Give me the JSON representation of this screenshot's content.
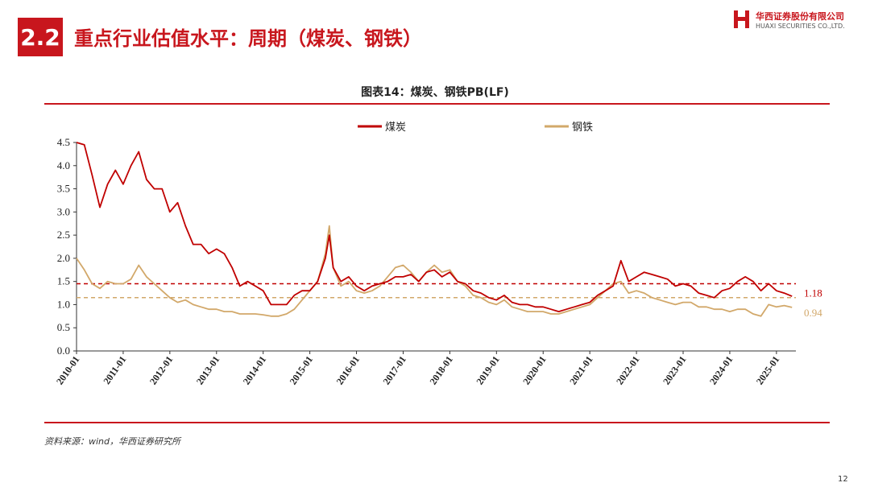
{
  "header": {
    "section_number": "2.2",
    "title": "重点行业估值水平：周期（煤炭、钢铁）",
    "logo_cn": "华西证券股份有限公司",
    "logo_en": "HUAXI SECURITIES CO.,LTD."
  },
  "footer": {
    "source": "资料来源：wind，华西证券研究所",
    "page_number": "12"
  },
  "colors": {
    "brand": "#c8161d",
    "coal": "#c00000",
    "steel": "#d2a86a"
  },
  "chart_data": {
    "type": "line",
    "title": "图表14：煤炭、钢铁PB(LF)",
    "legend_position": "top",
    "x_tick_labels": [
      "2010-01",
      "2011-01",
      "2012-01",
      "2013-01",
      "2014-01",
      "2015-01",
      "2016-01",
      "2017-01",
      "2018-01",
      "2019-01",
      "2020-01",
      "2021-01",
      "2022-01",
      "2023-01",
      "2024-01",
      "2025-01"
    ],
    "y_tick_labels": [
      "0.0",
      "0.5",
      "1.0",
      "1.5",
      "2.0",
      "2.5",
      "3.0",
      "3.5",
      "4.0",
      "4.5"
    ],
    "xlim": [
      "2010-01",
      "2025-06"
    ],
    "ylim": [
      0,
      4.5
    ],
    "grid": false,
    "series": [
      {
        "name": "煤炭",
        "color": "#c00000",
        "end_label": "1.18",
        "reference_line": 1.45,
        "points": [
          [
            "2010-01",
            4.5
          ],
          [
            "2010-03",
            4.45
          ],
          [
            "2010-05",
            3.8
          ],
          [
            "2010-07",
            3.1
          ],
          [
            "2010-09",
            3.6
          ],
          [
            "2010-11",
            3.9
          ],
          [
            "2011-01",
            3.6
          ],
          [
            "2011-03",
            4.0
          ],
          [
            "2011-05",
            4.3
          ],
          [
            "2011-07",
            3.7
          ],
          [
            "2011-09",
            3.5
          ],
          [
            "2011-11",
            3.5
          ],
          [
            "2012-01",
            3.0
          ],
          [
            "2012-03",
            3.2
          ],
          [
            "2012-05",
            2.7
          ],
          [
            "2012-07",
            2.3
          ],
          [
            "2012-09",
            2.3
          ],
          [
            "2012-11",
            2.1
          ],
          [
            "2013-01",
            2.2
          ],
          [
            "2013-03",
            2.1
          ],
          [
            "2013-05",
            1.8
          ],
          [
            "2013-07",
            1.4
          ],
          [
            "2013-09",
            1.5
          ],
          [
            "2013-11",
            1.4
          ],
          [
            "2014-01",
            1.3
          ],
          [
            "2014-03",
            1.0
          ],
          [
            "2014-05",
            1.0
          ],
          [
            "2014-07",
            1.0
          ],
          [
            "2014-09",
            1.2
          ],
          [
            "2014-11",
            1.3
          ],
          [
            "2015-01",
            1.3
          ],
          [
            "2015-03",
            1.5
          ],
          [
            "2015-05",
            2.0
          ],
          [
            "2015-06",
            2.5
          ],
          [
            "2015-07",
            1.8
          ],
          [
            "2015-09",
            1.5
          ],
          [
            "2015-11",
            1.6
          ],
          [
            "2016-01",
            1.4
          ],
          [
            "2016-03",
            1.3
          ],
          [
            "2016-05",
            1.4
          ],
          [
            "2016-07",
            1.45
          ],
          [
            "2016-09",
            1.5
          ],
          [
            "2016-11",
            1.6
          ],
          [
            "2017-01",
            1.6
          ],
          [
            "2017-03",
            1.65
          ],
          [
            "2017-05",
            1.5
          ],
          [
            "2017-07",
            1.7
          ],
          [
            "2017-09",
            1.75
          ],
          [
            "2017-11",
            1.6
          ],
          [
            "2018-01",
            1.7
          ],
          [
            "2018-03",
            1.5
          ],
          [
            "2018-05",
            1.45
          ],
          [
            "2018-07",
            1.3
          ],
          [
            "2018-09",
            1.25
          ],
          [
            "2018-11",
            1.15
          ],
          [
            "2019-01",
            1.1
          ],
          [
            "2019-03",
            1.2
          ],
          [
            "2019-05",
            1.05
          ],
          [
            "2019-07",
            1.0
          ],
          [
            "2019-09",
            1.0
          ],
          [
            "2019-11",
            0.95
          ],
          [
            "2020-01",
            0.95
          ],
          [
            "2020-03",
            0.9
          ],
          [
            "2020-05",
            0.85
          ],
          [
            "2020-07",
            0.9
          ],
          [
            "2020-09",
            0.95
          ],
          [
            "2020-11",
            1.0
          ],
          [
            "2021-01",
            1.05
          ],
          [
            "2021-03",
            1.2
          ],
          [
            "2021-05",
            1.3
          ],
          [
            "2021-07",
            1.4
          ],
          [
            "2021-09",
            1.95
          ],
          [
            "2021-11",
            1.5
          ],
          [
            "2022-01",
            1.6
          ],
          [
            "2022-03",
            1.7
          ],
          [
            "2022-05",
            1.65
          ],
          [
            "2022-07",
            1.6
          ],
          [
            "2022-09",
            1.55
          ],
          [
            "2022-11",
            1.4
          ],
          [
            "2023-01",
            1.45
          ],
          [
            "2023-03",
            1.4
          ],
          [
            "2023-05",
            1.25
          ],
          [
            "2023-07",
            1.2
          ],
          [
            "2023-09",
            1.15
          ],
          [
            "2023-11",
            1.3
          ],
          [
            "2024-01",
            1.35
          ],
          [
            "2024-03",
            1.5
          ],
          [
            "2024-05",
            1.6
          ],
          [
            "2024-07",
            1.5
          ],
          [
            "2024-09",
            1.3
          ],
          [
            "2024-11",
            1.45
          ],
          [
            "2025-01",
            1.3
          ],
          [
            "2025-03",
            1.25
          ],
          [
            "2025-05",
            1.18
          ]
        ]
      },
      {
        "name": "钢铁",
        "color": "#d2a86a",
        "end_label": "0.94",
        "reference_line": 1.15,
        "points": [
          [
            "2010-01",
            2.0
          ],
          [
            "2010-03",
            1.75
          ],
          [
            "2010-05",
            1.45
          ],
          [
            "2010-07",
            1.35
          ],
          [
            "2010-09",
            1.5
          ],
          [
            "2010-11",
            1.45
          ],
          [
            "2011-01",
            1.45
          ],
          [
            "2011-03",
            1.55
          ],
          [
            "2011-05",
            1.85
          ],
          [
            "2011-07",
            1.6
          ],
          [
            "2011-09",
            1.45
          ],
          [
            "2011-11",
            1.3
          ],
          [
            "2012-01",
            1.15
          ],
          [
            "2012-03",
            1.05
          ],
          [
            "2012-05",
            1.1
          ],
          [
            "2012-07",
            1.0
          ],
          [
            "2012-09",
            0.95
          ],
          [
            "2012-11",
            0.9
          ],
          [
            "2013-01",
            0.9
          ],
          [
            "2013-03",
            0.85
          ],
          [
            "2013-05",
            0.85
          ],
          [
            "2013-07",
            0.8
          ],
          [
            "2013-09",
            0.8
          ],
          [
            "2013-11",
            0.8
          ],
          [
            "2014-01",
            0.78
          ],
          [
            "2014-03",
            0.75
          ],
          [
            "2014-05",
            0.75
          ],
          [
            "2014-07",
            0.8
          ],
          [
            "2014-09",
            0.9
          ],
          [
            "2014-11",
            1.1
          ],
          [
            "2015-01",
            1.3
          ],
          [
            "2015-03",
            1.5
          ],
          [
            "2015-05",
            2.1
          ],
          [
            "2015-06",
            2.7
          ],
          [
            "2015-07",
            1.8
          ],
          [
            "2015-09",
            1.4
          ],
          [
            "2015-11",
            1.5
          ],
          [
            "2016-01",
            1.3
          ],
          [
            "2016-03",
            1.25
          ],
          [
            "2016-05",
            1.3
          ],
          [
            "2016-07",
            1.4
          ],
          [
            "2016-09",
            1.6
          ],
          [
            "2016-11",
            1.8
          ],
          [
            "2017-01",
            1.85
          ],
          [
            "2017-03",
            1.7
          ],
          [
            "2017-05",
            1.5
          ],
          [
            "2017-07",
            1.7
          ],
          [
            "2017-09",
            1.85
          ],
          [
            "2017-11",
            1.7
          ],
          [
            "2018-01",
            1.75
          ],
          [
            "2018-03",
            1.5
          ],
          [
            "2018-05",
            1.4
          ],
          [
            "2018-07",
            1.2
          ],
          [
            "2018-09",
            1.15
          ],
          [
            "2018-11",
            1.05
          ],
          [
            "2019-01",
            1.0
          ],
          [
            "2019-03",
            1.1
          ],
          [
            "2019-05",
            0.95
          ],
          [
            "2019-07",
            0.9
          ],
          [
            "2019-09",
            0.85
          ],
          [
            "2019-11",
            0.85
          ],
          [
            "2020-01",
            0.85
          ],
          [
            "2020-03",
            0.8
          ],
          [
            "2020-05",
            0.8
          ],
          [
            "2020-07",
            0.85
          ],
          [
            "2020-09",
            0.9
          ],
          [
            "2020-11",
            0.95
          ],
          [
            "2021-01",
            1.0
          ],
          [
            "2021-03",
            1.15
          ],
          [
            "2021-05",
            1.3
          ],
          [
            "2021-07",
            1.45
          ],
          [
            "2021-09",
            1.5
          ],
          [
            "2021-11",
            1.25
          ],
          [
            "2022-01",
            1.3
          ],
          [
            "2022-03",
            1.25
          ],
          [
            "2022-05",
            1.15
          ],
          [
            "2022-07",
            1.1
          ],
          [
            "2022-09",
            1.05
          ],
          [
            "2022-11",
            1.0
          ],
          [
            "2023-01",
            1.05
          ],
          [
            "2023-03",
            1.05
          ],
          [
            "2023-05",
            0.95
          ],
          [
            "2023-07",
            0.95
          ],
          [
            "2023-09",
            0.9
          ],
          [
            "2023-11",
            0.9
          ],
          [
            "2024-01",
            0.85
          ],
          [
            "2024-03",
            0.9
          ],
          [
            "2024-05",
            0.9
          ],
          [
            "2024-07",
            0.8
          ],
          [
            "2024-09",
            0.75
          ],
          [
            "2024-11",
            1.0
          ],
          [
            "2025-01",
            0.95
          ],
          [
            "2025-03",
            0.98
          ],
          [
            "2025-05",
            0.94
          ]
        ]
      }
    ]
  }
}
